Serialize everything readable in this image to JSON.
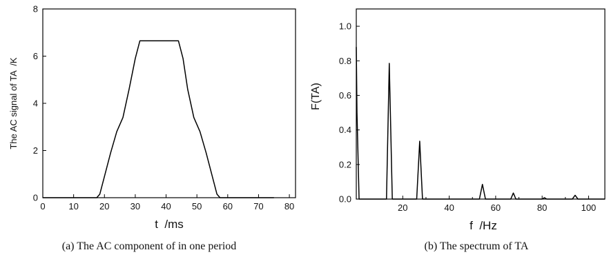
{
  "chart_data": [
    {
      "type": "line",
      "xlabel": "t  /ms",
      "ylabel": "The AC signal of TA  /K",
      "caption": "(a) The AC component of in one period",
      "xlim": [
        0,
        82
      ],
      "ylim": [
        0,
        8
      ],
      "xticks": [
        "0",
        "10",
        "20",
        "30",
        "40",
        "50",
        "60",
        "70",
        "80"
      ],
      "yticks": [
        "0",
        "2",
        "4",
        "6",
        "8"
      ],
      "grid": false,
      "series": [
        {
          "x": [
            0,
            17.5,
            18.5,
            20,
            22,
            24,
            26,
            28,
            30,
            31.5,
            44,
            45.5,
            47,
            49,
            51,
            53,
            55,
            56.5,
            57.5,
            75
          ],
          "y": [
            0,
            0,
            0.15,
            0.9,
            1.9,
            2.8,
            3.4,
            4.6,
            5.9,
            6.65,
            6.65,
            5.9,
            4.6,
            3.4,
            2.8,
            1.9,
            0.9,
            0.15,
            0,
            0
          ]
        }
      ]
    },
    {
      "type": "line",
      "xlabel": "f  /Hz",
      "ylabel": "F(TA)",
      "caption": "(b) The spectrum of TA",
      "xlim": [
        0,
        107
      ],
      "ylim": [
        0,
        1.1
      ],
      "xticks": [
        "20",
        "40",
        "60",
        "80",
        "100"
      ],
      "yticks": [
        "0.0",
        "0.2",
        "0.4",
        "0.6",
        "0.8",
        "1.0"
      ],
      "grid": false,
      "series": [
        {
          "x": [
            0,
            0.3,
            1.2,
            13,
            14.2,
            15.5,
            26,
            27.3,
            28.5,
            53,
            54.3,
            55.6,
            66.5,
            67.6,
            68.7,
            80,
            81,
            82,
            93,
            94.2,
            95.4,
            107
          ],
          "y": [
            0.88,
            0.5,
            0,
            0,
            0.785,
            0,
            0,
            0.335,
            0,
            0,
            0.085,
            0,
            0,
            0.035,
            0,
            0,
            0.008,
            0,
            0,
            0.022,
            0,
            0
          ]
        }
      ]
    }
  ]
}
